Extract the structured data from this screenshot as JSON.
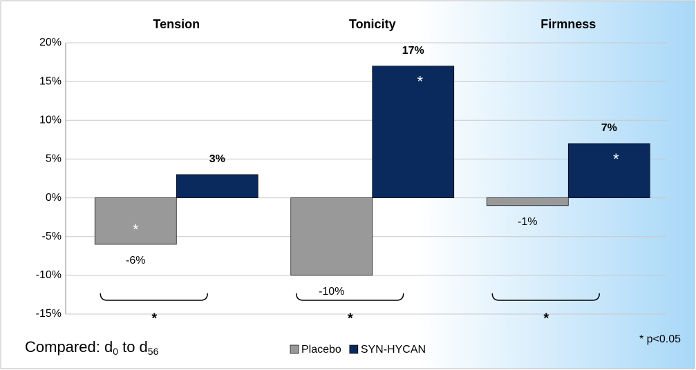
{
  "chart_data": {
    "type": "bar",
    "categories": [
      "Tension",
      "Tonicity",
      "Firmness"
    ],
    "series": [
      {
        "name": "Placebo",
        "color": "#999999",
        "values": [
          -6,
          -10,
          -1
        ],
        "value_labels": [
          "-6%",
          "-10%",
          "-1%"
        ]
      },
      {
        "name": "SYN-HYCAN",
        "color": "#0a2a5e",
        "values": [
          3,
          17,
          7
        ],
        "value_labels": [
          "3%",
          "17%",
          "7%"
        ]
      }
    ],
    "ylim": [
      -15,
      20
    ],
    "yticks": [
      {
        "value": -15,
        "label": "-15%"
      },
      {
        "value": -10,
        "label": "-10%"
      },
      {
        "value": -5,
        "label": "-5%"
      },
      {
        "value": 0,
        "label": "0%"
      },
      {
        "value": 5,
        "label": "5%"
      },
      {
        "value": 10,
        "label": "10%"
      },
      {
        "value": 15,
        "label": "15%"
      },
      {
        "value": 20,
        "label": "20%"
      }
    ],
    "grid": true,
    "bar_stars": [
      {
        "text": "*",
        "series": 0,
        "category": 0
      },
      {
        "text": "*",
        "series": 1,
        "category": 1
      },
      {
        "text": "*",
        "series": 1,
        "category": 2
      }
    ],
    "group_stars": [
      {
        "text": "*",
        "category": 0
      },
      {
        "text": "*",
        "category": 1
      },
      {
        "text": "*",
        "category": 2
      }
    ],
    "note": [
      "Compared: d",
      "0",
      " to d",
      "56"
    ],
    "footnote": "* p<0.05"
  }
}
